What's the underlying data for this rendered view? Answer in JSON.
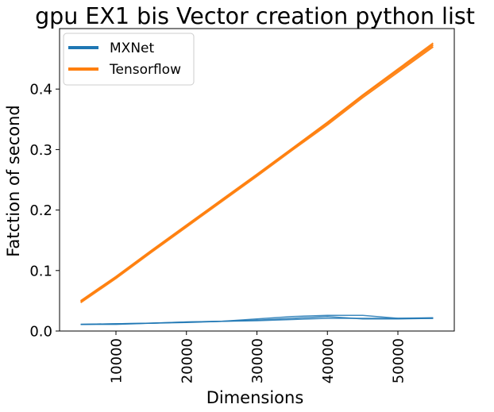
{
  "chart_data": {
    "type": "line",
    "title": "gpu EX1 bis Vector creation python list",
    "xlabel": "Dimensions",
    "ylabel": "Fatction of second",
    "xlim": [
      2000,
      58000
    ],
    "ylim": [
      0,
      0.5
    ],
    "x_ticks": [
      10000,
      20000,
      30000,
      40000,
      50000
    ],
    "x_tick_labels": [
      "10000",
      "20000",
      "30000",
      "40000",
      "50000"
    ],
    "y_ticks": [
      0.0,
      0.1,
      0.2,
      0.3,
      0.4
    ],
    "y_tick_labels": [
      "0.0",
      "0.1",
      "0.2",
      "0.3",
      "0.4"
    ],
    "grid": false,
    "legend_position": "top-left",
    "x": [
      5000,
      10000,
      15000,
      20000,
      25000,
      30000,
      35000,
      40000,
      45000,
      50000,
      55000
    ],
    "series": [
      {
        "name": "MXNet",
        "color": "#1f77b4",
        "runs": [
          [
            0.011,
            0.012,
            0.013,
            0.015,
            0.016,
            0.018,
            0.021,
            0.024,
            0.02,
            0.02,
            0.021
          ],
          [
            0.011,
            0.012,
            0.013,
            0.014,
            0.016,
            0.02,
            0.024,
            0.026,
            0.026,
            0.021,
            0.022
          ],
          [
            0.011,
            0.011,
            0.013,
            0.015,
            0.016,
            0.017,
            0.019,
            0.021,
            0.021,
            0.021,
            0.021
          ]
        ]
      },
      {
        "name": "Tensorflow",
        "color": "#ff7f0e",
        "runs": [
          [
            0.047,
            0.087,
            0.13,
            0.172,
            0.214,
            0.256,
            0.299,
            0.341,
            0.386,
            0.428,
            0.47
          ],
          [
            0.049,
            0.089,
            0.132,
            0.174,
            0.216,
            0.258,
            0.301,
            0.344,
            0.389,
            0.431,
            0.473
          ],
          [
            0.05,
            0.09,
            0.133,
            0.175,
            0.217,
            0.259,
            0.302,
            0.345,
            0.39,
            0.433,
            0.476
          ]
        ]
      }
    ]
  }
}
